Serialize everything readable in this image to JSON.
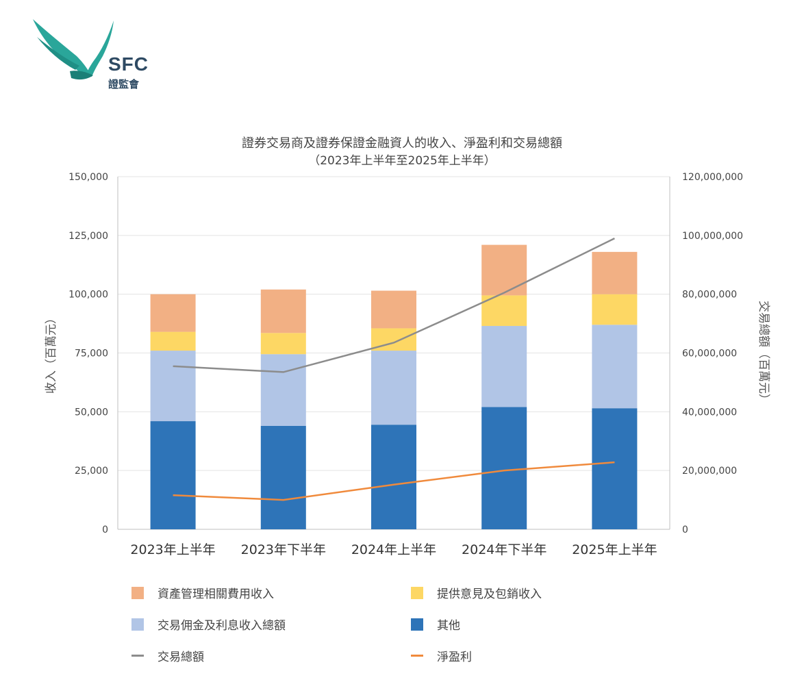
{
  "logo": {
    "text": "SFC",
    "subtext": "證監會",
    "color": "#2aa69a"
  },
  "chart_data": {
    "type": "bar",
    "stacked": true,
    "title": "證券交易商及證券保證金融資人的收入、淨盈利和交易總額",
    "subtitle": "（2023年上半年至2025年上半年）",
    "ylabel": "收入（百萬元）",
    "y2label": "交易總額（百萬元）",
    "ylim": [
      0,
      150000
    ],
    "y2lim": [
      0,
      120000000
    ],
    "yticks": [
      "0",
      "25,000",
      "50,000",
      "75,000",
      "100,000",
      "125,000",
      "150,000"
    ],
    "y2ticks": [
      "0",
      "20,000,000",
      "40,000,000",
      "60,000,000",
      "80,000,000",
      "100,000,000",
      "120,000,000"
    ],
    "categories": [
      "2023年上半年",
      "2023年下半年",
      "2024年上半年",
      "2024年下半年",
      "2025年上半年"
    ],
    "series": [
      {
        "name": "其他",
        "type": "bar",
        "color": "#2e74b8",
        "values": [
          46000,
          44000,
          44500,
          52000,
          51500
        ]
      },
      {
        "name": "交易佣金及利息收入總額",
        "type": "bar",
        "color": "#b1c5e6",
        "values": [
          30000,
          30500,
          31500,
          34500,
          35500
        ]
      },
      {
        "name": "提供意見及包銷收入",
        "type": "bar",
        "color": "#fdd764",
        "values": [
          8000,
          9000,
          9500,
          13000,
          13000
        ]
      },
      {
        "name": "資產管理相關費用收入",
        "type": "bar",
        "color": "#f2b084",
        "values": [
          16000,
          18500,
          16000,
          21500,
          18000
        ]
      },
      {
        "name": "交易總額",
        "type": "line",
        "axis": "y2",
        "color": "#8c8c8c",
        "values": [
          55500000,
          53500000,
          63500000,
          80500000,
          99000000
        ]
      },
      {
        "name": "淨盈利",
        "type": "line",
        "axis": "y",
        "color": "#f08a3c",
        "values": [
          14500,
          12500,
          19000,
          25000,
          28500
        ]
      }
    ],
    "legend": [
      {
        "name": "資產管理相關費用收入",
        "kind": "box",
        "color": "#f2b084"
      },
      {
        "name": "提供意見及包銷收入",
        "kind": "box",
        "color": "#fdd764"
      },
      {
        "name": "交易佣金及利息收入總額",
        "kind": "box",
        "color": "#b1c5e6"
      },
      {
        "name": "其他",
        "kind": "box",
        "color": "#2e74b8"
      },
      {
        "name": "交易總額",
        "kind": "line",
        "color": "#8c8c8c"
      },
      {
        "name": "淨盈利",
        "kind": "line",
        "color": "#f08a3c"
      }
    ],
    "legend_position": "bottom",
    "grid": true
  }
}
